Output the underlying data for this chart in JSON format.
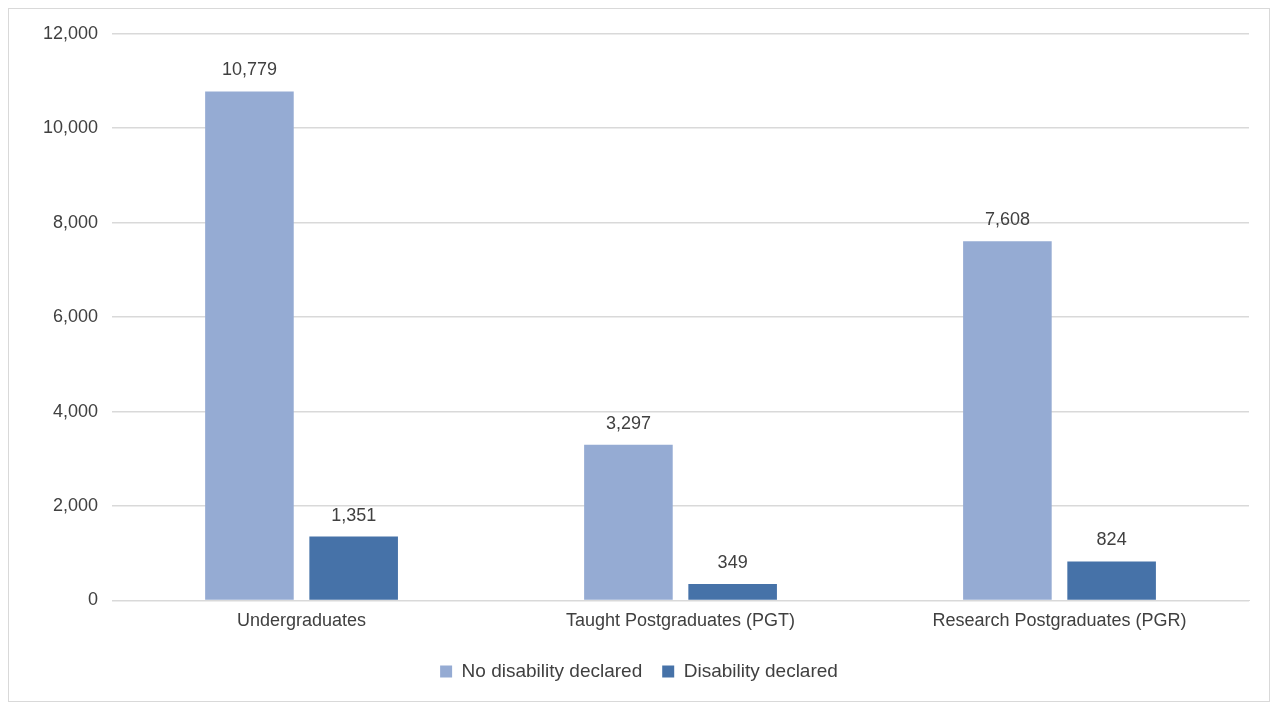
{
  "chart_data": {
    "type": "bar",
    "categories": [
      "Undergraduates",
      "Taught Postgraduates (PGT)",
      "Research Postgraduates (PGR)"
    ],
    "series": [
      {
        "name": "No disability declared",
        "color": "#95abd3",
        "values": [
          10779,
          3297,
          7608
        ],
        "value_labels": [
          "10,779",
          "3,297",
          "7,608"
        ]
      },
      {
        "name": "Disability declared",
        "color": "#4672a8",
        "values": [
          1351,
          349,
          824
        ],
        "value_labels": [
          "1,351",
          "349",
          "824"
        ]
      }
    ],
    "ylim": [
      0,
      12000
    ],
    "yticks": [
      {
        "value": 0,
        "label": "0"
      },
      {
        "value": 2000,
        "label": "2,000"
      },
      {
        "value": 4000,
        "label": "4,000"
      },
      {
        "value": 6000,
        "label": "6,000"
      },
      {
        "value": 8000,
        "label": "8,000"
      },
      {
        "value": 10000,
        "label": "10,000"
      },
      {
        "value": 12000,
        "label": "12,000"
      }
    ],
    "grid": "y",
    "legend": "bottom"
  }
}
